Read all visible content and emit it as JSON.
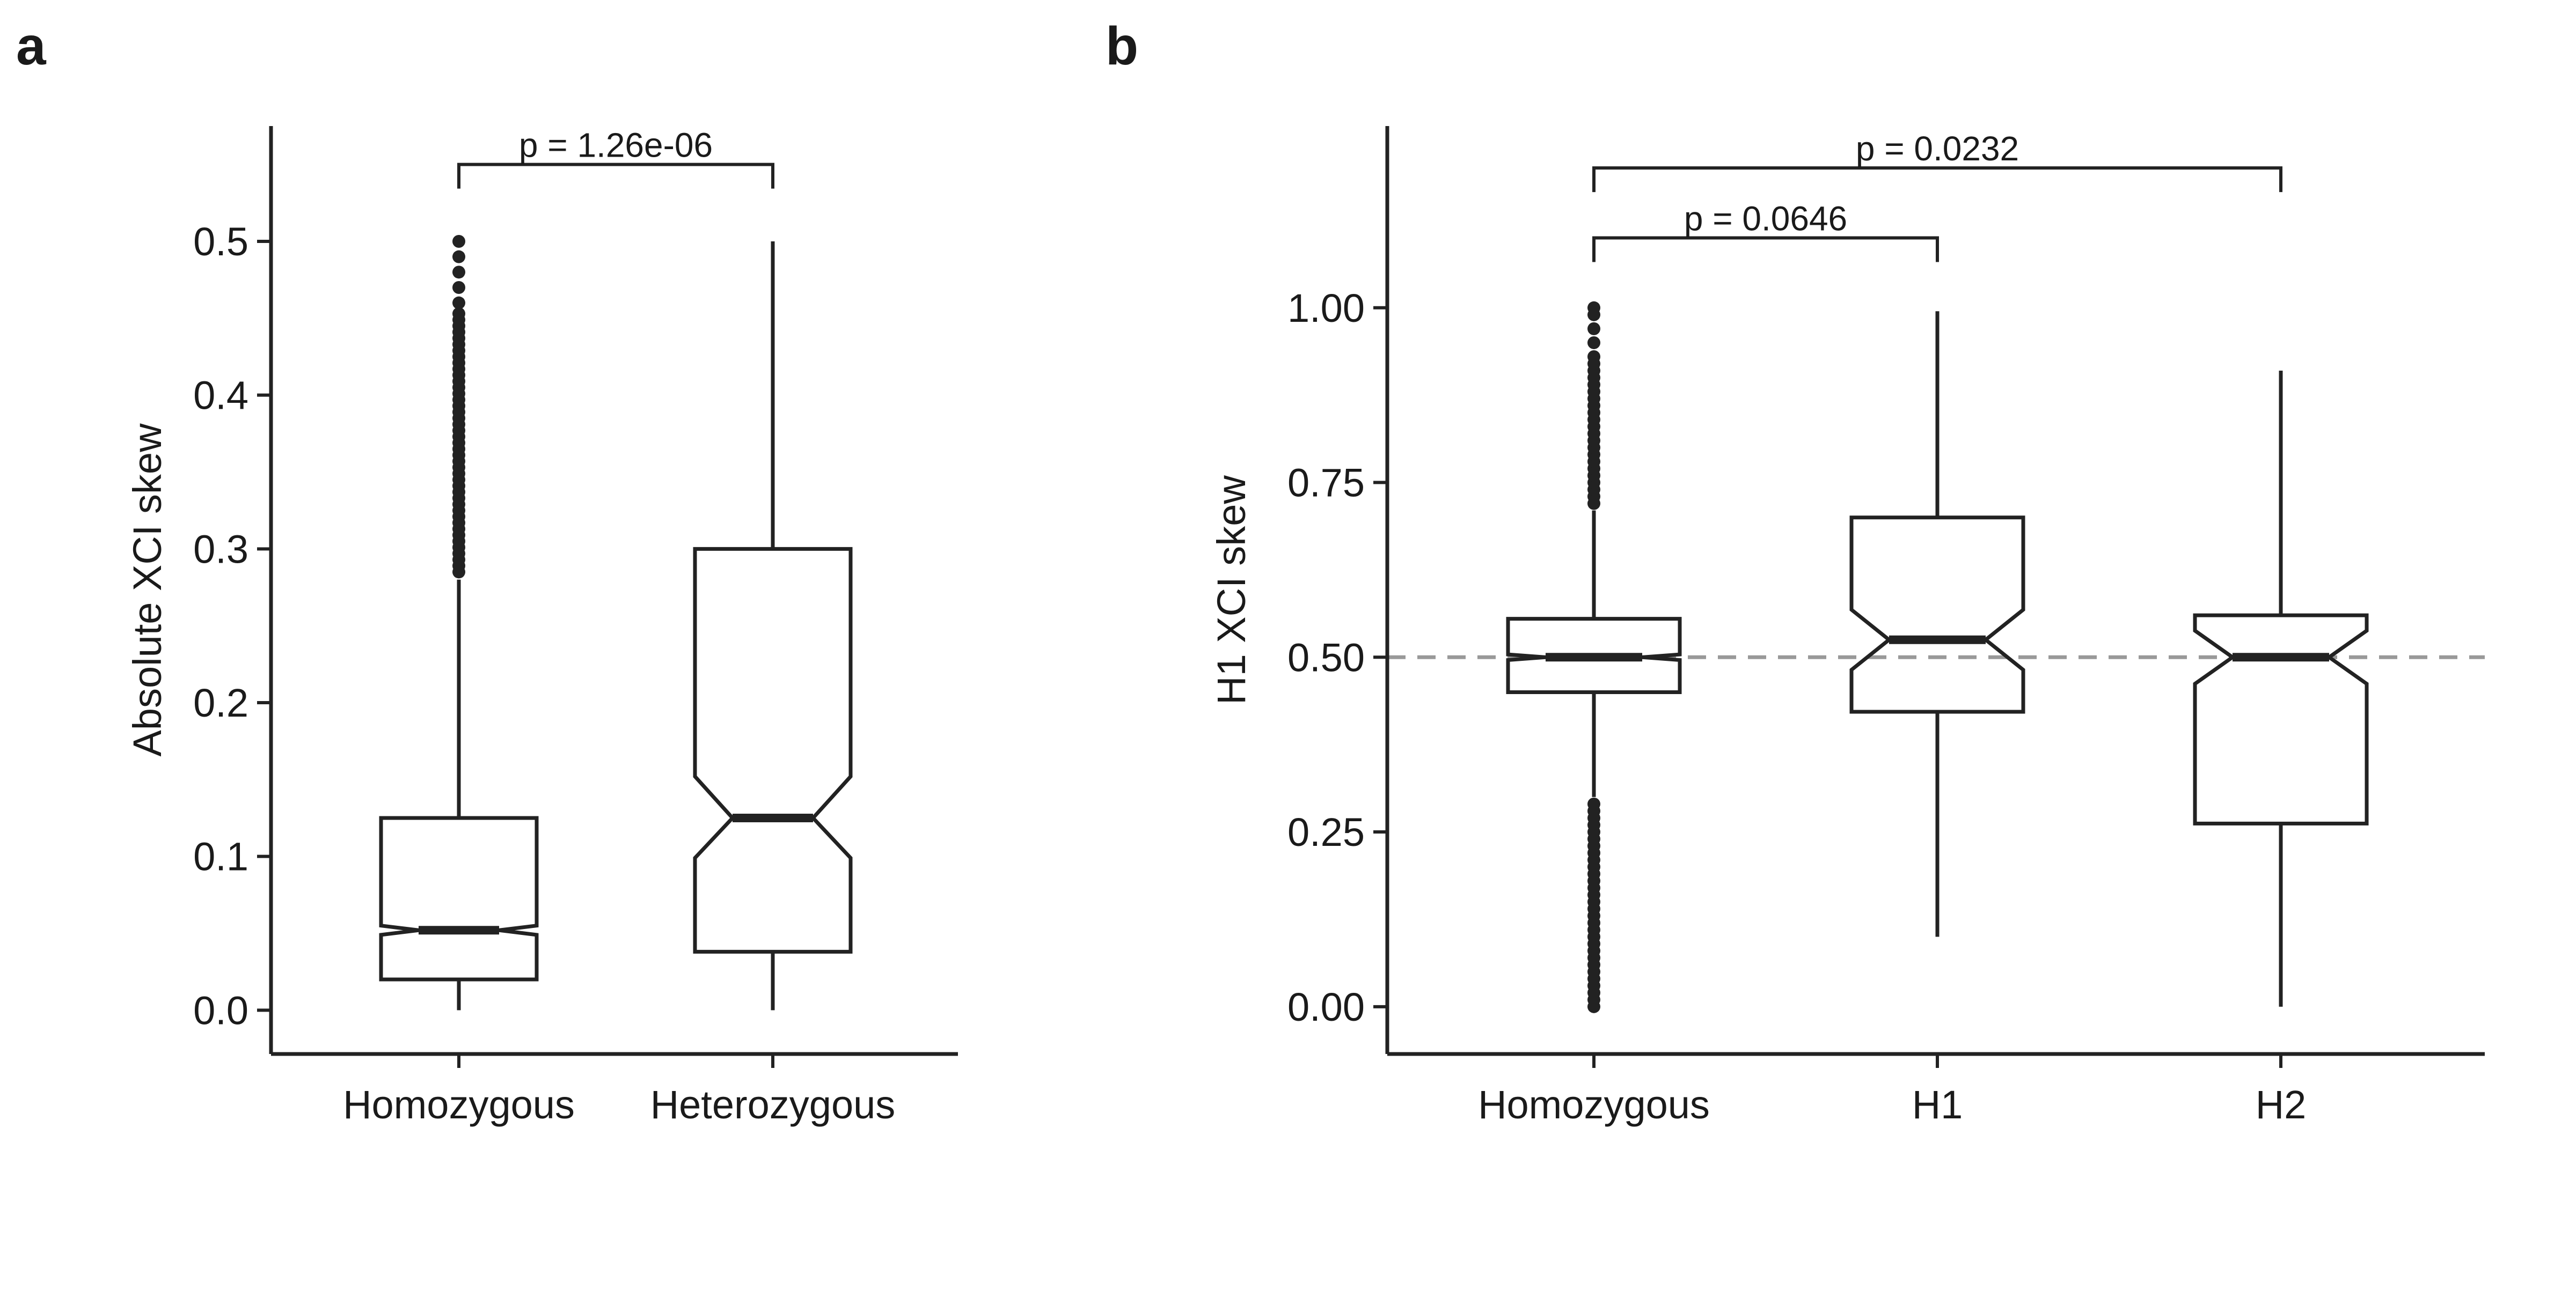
{
  "figure": {
    "panels": [
      "a",
      "b"
    ]
  },
  "chart_data": [
    {
      "panel": "a",
      "type": "box",
      "notched": true,
      "categories": [
        "Homozygous",
        "Heterozygous"
      ],
      "ylabel": "Absolute XCI skew",
      "xlabel": "",
      "ylim": [
        -0.025,
        0.575
      ],
      "yticks": [
        0.0,
        0.1,
        0.2,
        0.3,
        0.4,
        0.5
      ],
      "ytick_labels": [
        "0.0",
        "0.1",
        "0.2",
        "0.3",
        "0.4",
        "0.5"
      ],
      "reference_line": null,
      "boxes": [
        {
          "category": "Homozygous",
          "whisker_low": 0.0,
          "q1": 0.02,
          "median": 0.052,
          "q3": 0.125,
          "whisker_high": 0.28,
          "notch_low": 0.049,
          "notch_high": 0.055,
          "outliers": [
            0.285,
            0.289,
            0.293,
            0.297,
            0.301,
            0.305,
            0.309,
            0.313,
            0.317,
            0.321,
            0.325,
            0.329,
            0.333,
            0.337,
            0.341,
            0.345,
            0.349,
            0.353,
            0.357,
            0.361,
            0.365,
            0.369,
            0.373,
            0.377,
            0.381,
            0.385,
            0.389,
            0.393,
            0.397,
            0.401,
            0.405,
            0.409,
            0.413,
            0.417,
            0.421,
            0.425,
            0.429,
            0.433,
            0.437,
            0.441,
            0.445,
            0.449,
            0.453,
            0.46,
            0.47,
            0.48,
            0.49,
            0.5
          ]
        },
        {
          "category": "Heterozygous",
          "whisker_low": 0.0,
          "q1": 0.038,
          "median": 0.125,
          "q3": 0.3,
          "whisker_high": 0.5,
          "notch_low": 0.099,
          "notch_high": 0.152,
          "outliers": []
        }
      ],
      "comparisons": [
        {
          "from": "Homozygous",
          "to": "Heterozygous",
          "label": "p = 1.26e-06",
          "y": 0.55
        }
      ]
    },
    {
      "panel": "b",
      "type": "box",
      "notched": true,
      "categories": [
        "Homozygous",
        "H1",
        "H2"
      ],
      "ylabel": "H1 XCI skew",
      "xlabel": "",
      "ylim": [
        -0.06,
        1.26
      ],
      "yticks": [
        0.0,
        0.25,
        0.5,
        0.75,
        1.0
      ],
      "ytick_labels": [
        "0.00",
        "0.25",
        "0.50",
        "0.75",
        "1.00"
      ],
      "reference_line": {
        "y": 0.5,
        "style": "dashed",
        "color": "#999999"
      },
      "boxes": [
        {
          "category": "Homozygous",
          "whisker_low": 0.3,
          "q1": 0.45,
          "median": 0.5,
          "q3": 0.555,
          "whisker_high": 0.71,
          "notch_low": 0.496,
          "notch_high": 0.504,
          "outliers": [
            0.0,
            0.01,
            0.02,
            0.03,
            0.04,
            0.05,
            0.06,
            0.07,
            0.08,
            0.09,
            0.1,
            0.11,
            0.12,
            0.13,
            0.14,
            0.15,
            0.16,
            0.17,
            0.18,
            0.19,
            0.2,
            0.21,
            0.22,
            0.23,
            0.24,
            0.25,
            0.26,
            0.27,
            0.28,
            0.29,
            0.72,
            0.73,
            0.74,
            0.75,
            0.76,
            0.77,
            0.78,
            0.79,
            0.8,
            0.81,
            0.82,
            0.83,
            0.84,
            0.85,
            0.86,
            0.87,
            0.88,
            0.89,
            0.9,
            0.91,
            0.92,
            0.93,
            0.95,
            0.97,
            0.99,
            1.0
          ]
        },
        {
          "category": "H1",
          "whisker_low": 0.1,
          "q1": 0.422,
          "median": 0.525,
          "q3": 0.7,
          "whisker_high": 0.995,
          "notch_low": 0.482,
          "notch_high": 0.568,
          "outliers": []
        },
        {
          "category": "H2",
          "whisker_low": 0.0,
          "q1": 0.262,
          "median": 0.5,
          "q3": 0.56,
          "whisker_high": 0.91,
          "notch_low": 0.462,
          "notch_high": 0.538,
          "outliers": []
        }
      ],
      "comparisons": [
        {
          "from": "Homozygous",
          "to": "H1",
          "label": "p = 0.0646",
          "y": 1.1
        },
        {
          "from": "Homozygous",
          "to": "H2",
          "label": "p = 0.0232",
          "y": 1.2
        }
      ]
    }
  ]
}
